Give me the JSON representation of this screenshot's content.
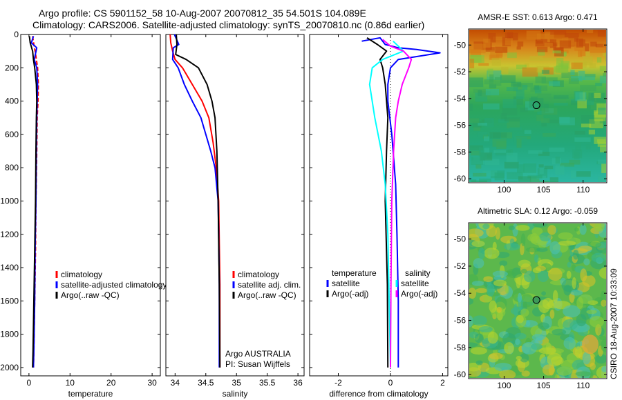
{
  "figure": {
    "title_line1": "Argo profile: CS 5901152_58 10-Aug-2007 20070812_35 54.501S 104.089E",
    "title_line2": "Climatology: CARS2006. Satellite-adjusted climatology: synTS_20070810.nc (0.86d earlier)",
    "side_stamp": "CSIRO 18-Aug-2007 10:33:09"
  },
  "colors": {
    "red": "#ff0000",
    "blue": "#0000ff",
    "black": "#000000",
    "cyan": "#00ffff",
    "magenta": "#ff00ff"
  },
  "chart_data": [
    {
      "id": "temperature",
      "type": "line",
      "xlabel": "temperature",
      "ylabel": "",
      "xlim": [
        -2,
        32
      ],
      "ylim": [
        2050,
        0
      ],
      "y_reversed": true,
      "xticks": [
        0,
        10,
        20,
        30
      ],
      "xtick_labels": [
        "0",
        "10",
        "20",
        "30"
      ],
      "yticks": [
        0,
        200,
        400,
        600,
        800,
        1000,
        1200,
        1400,
        1600,
        1800,
        2000
      ],
      "ytick_labels": [
        "0",
        "200",
        "400",
        "600",
        "800",
        "1000",
        "1200",
        "1400",
        "1600",
        "1800",
        "2000"
      ],
      "legend": {
        "placement": "lower-right",
        "entries": [
          "climatology",
          "satellite-adjusted climatology",
          "Argo(..raw -QC)"
        ]
      },
      "series": [
        {
          "name": "climatology",
          "color": "red",
          "style": "dashed",
          "x": [
            0.9,
            1.2,
            1.5,
            1.8,
            2.1,
            2.3,
            2.2,
            2.0,
            1.9,
            1.7,
            1.6,
            1.4,
            1.2,
            1.1
          ],
          "y": [
            10,
            60,
            100,
            150,
            200,
            300,
            400,
            500,
            700,
            1000,
            1300,
            1600,
            1900,
            2000
          ]
        },
        {
          "name": "satellite-adjusted climatology",
          "color": "blue",
          "style": "solid",
          "x": [
            1.1,
            0.6,
            1.9,
            1.3,
            1.9,
            2.1,
            2.0,
            1.9,
            1.8,
            1.7,
            1.5,
            1.4,
            1.2,
            1.1
          ],
          "y": [
            10,
            50,
            80,
            150,
            200,
            300,
            400,
            500,
            700,
            1000,
            1300,
            1600,
            1900,
            2000
          ]
        },
        {
          "name": "Argo(..raw -QC)",
          "color": "black",
          "style": "solid",
          "x": [
            0.1,
            0.3,
            0.9,
            1.1,
            1.4,
            1.8,
            1.9,
            1.8,
            1.7,
            1.6,
            1.4,
            1.2,
            1.0,
            0.9
          ],
          "y": [
            10,
            50,
            100,
            150,
            200,
            300,
            400,
            500,
            700,
            1000,
            1300,
            1600,
            1900,
            2000
          ]
        }
      ]
    },
    {
      "id": "salinity",
      "type": "line",
      "xlabel": "salinity",
      "ylabel": "",
      "xlim": [
        33.85,
        36.1
      ],
      "ylim": [
        2050,
        0
      ],
      "y_reversed": true,
      "xticks": [
        34,
        34.5,
        35,
        35.5,
        36
      ],
      "xtick_labels": [
        "34",
        "34.5",
        "35",
        "35.5",
        "36"
      ],
      "yticks": [
        0,
        200,
        400,
        600,
        800,
        1000,
        1200,
        1400,
        1600,
        1800,
        2000
      ],
      "legend": {
        "placement": "lower-right",
        "entries": [
          "climatology",
          "satellite adj. clim.",
          "Argo(..raw -QC)"
        ]
      },
      "annotation": [
        "Argo AUSTRALIA",
        "PI: Susan Wijffels"
      ],
      "series": [
        {
          "name": "climatology",
          "color": "red",
          "style": "solid",
          "x": [
            33.92,
            33.93,
            33.96,
            34.0,
            34.12,
            34.28,
            34.44,
            34.55,
            34.62,
            34.67,
            34.71,
            34.73,
            34.73
          ],
          "y": [
            0,
            50,
            100,
            150,
            200,
            300,
            400,
            500,
            650,
            800,
            1000,
            1500,
            2000
          ]
        },
        {
          "name": "satellite adj. clim.",
          "color": "blue",
          "style": "solid",
          "x": [
            33.99,
            34.06,
            33.97,
            33.96,
            34.05,
            34.15,
            34.28,
            34.42,
            34.5,
            34.58,
            34.65,
            34.7,
            34.71,
            34.72,
            34.72
          ],
          "y": [
            0,
            60,
            80,
            150,
            200,
            300,
            400,
            500,
            600,
            700,
            800,
            1000,
            1200,
            1500,
            2000
          ]
        },
        {
          "name": "Argo(..raw -QC)",
          "color": "black",
          "style": "solid",
          "x": [
            34.02,
            34.03,
            34.01,
            34.18,
            34.38,
            34.52,
            34.6,
            34.65,
            34.68,
            34.7,
            34.72,
            34.73
          ],
          "y": [
            0,
            60,
            120,
            150,
            200,
            300,
            400,
            500,
            700,
            1000,
            1500,
            2000
          ]
        }
      ]
    },
    {
      "id": "difference",
      "type": "line",
      "xlabel": "difference from climatology",
      "ylabel": "",
      "xlim": [
        -3.1,
        2.2
      ],
      "ylim": [
        2050,
        0
      ],
      "y_reversed": true,
      "xticks": [
        -2,
        0,
        2
      ],
      "xtick_labels": [
        "-2",
        "0",
        "2"
      ],
      "yticks": [
        0,
        200,
        400,
        600,
        800,
        1000,
        1200,
        1400,
        1600,
        1800,
        2000
      ],
      "legend": {
        "placement": "lower-right",
        "columns": [
          "temperature",
          "salinity"
        ],
        "entries": [
          "satellite",
          "Argo(-adj)",
          "satellite",
          "Argo(-adj)"
        ]
      },
      "series": [
        {
          "name": "temperature satellite",
          "color": "blue",
          "style": "solid",
          "x": [
            -1.1,
            -0.4,
            -0.2,
            0.3,
            1.0,
            1.9,
            0.3,
            0.0,
            -0.1,
            -0.1,
            0.05,
            0.2,
            0.25,
            0.3,
            0.3
          ],
          "y": [
            40,
            20,
            60,
            80,
            90,
            110,
            150,
            200,
            300,
            400,
            600,
            900,
            1200,
            1600,
            2000
          ]
        },
        {
          "name": "temperature Argo(-adj)",
          "color": "black",
          "style": "solid",
          "x": [
            -0.9,
            -0.5,
            -0.15,
            -0.4,
            -0.3,
            -0.2,
            -0.15,
            -0.1,
            -0.15,
            -0.2,
            -0.12,
            -0.1
          ],
          "y": [
            20,
            60,
            100,
            150,
            200,
            300,
            400,
            500,
            700,
            1000,
            1500,
            2000
          ]
        },
        {
          "name": "salinity satellite",
          "color": "cyan",
          "style": "solid",
          "x": [
            0.1,
            0.3,
            0.5,
            -0.3,
            -0.7,
            -0.8,
            -0.6,
            -0.35,
            -0.2,
            -0.1,
            -0.05,
            0.0
          ],
          "y": [
            40,
            70,
            100,
            150,
            200,
            300,
            500,
            700,
            900,
            1200,
            1600,
            2000
          ]
        },
        {
          "name": "salinity Argo(-adj)",
          "color": "magenta",
          "style": "solid",
          "x": [
            -0.3,
            0.0,
            0.5,
            0.8,
            0.7,
            0.45,
            0.3,
            0.2,
            0.12,
            0.05,
            0.02,
            0.0
          ],
          "y": [
            30,
            70,
            100,
            150,
            200,
            300,
            400,
            500,
            700,
            1000,
            1500,
            2000
          ]
        }
      ]
    },
    {
      "id": "sst_map",
      "type": "heatmap",
      "title": "AMSR-E SST: 0.613 Argo: 0.471",
      "xlim": [
        95.5,
        113.0
      ],
      "ylim": [
        -60.3,
        -48.8
      ],
      "xticks": [
        100,
        105,
        110
      ],
      "xtick_labels": [
        "100",
        "105",
        "110"
      ],
      "yticks": [
        -50,
        -52,
        -54,
        -56,
        -58,
        -60
      ],
      "ytick_labels": [
        "-50",
        "-52",
        "-54",
        "-56",
        "-58",
        "-60"
      ],
      "marker": {
        "lon": 104.089,
        "lat": -54.501
      }
    },
    {
      "id": "sla_map",
      "type": "heatmap",
      "title": "Altimetric SLA: 0.12 Argo: -0.059",
      "xlim": [
        95.5,
        113.0
      ],
      "ylim": [
        -60.3,
        -48.8
      ],
      "xticks": [
        100,
        105,
        110
      ],
      "xtick_labels": [
        "100",
        "105",
        "110"
      ],
      "yticks": [
        -50,
        -52,
        -54,
        -56,
        -58,
        -60
      ],
      "ytick_labels": [
        "-50",
        "-52",
        "-54",
        "-56",
        "-58",
        "-60"
      ],
      "marker": {
        "lon": 104.089,
        "lat": -54.501
      }
    }
  ]
}
